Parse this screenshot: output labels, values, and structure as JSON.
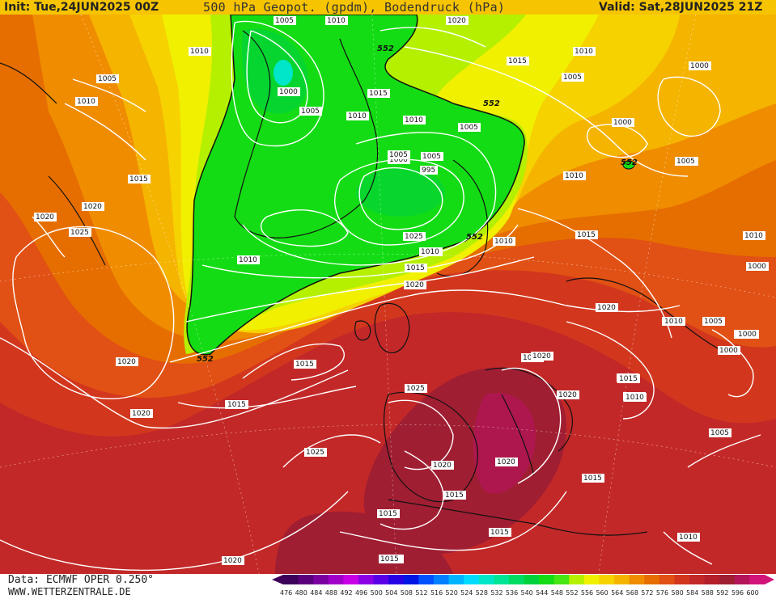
{
  "header": {
    "init": "Init: Tue,24JUN2025 00Z",
    "title": "500 hPa Geopot. (gpdm), Bodendruck (hPa)",
    "valid": "Valid: Sat,28JUN2025 21Z"
  },
  "footer": {
    "data_source": "Data: ECMWF OPER 0.250°",
    "website": "WWW.WETTERZENTRALE.DE"
  },
  "legend": {
    "values": [
      "476",
      "480",
      "484",
      "488",
      "492",
      "496",
      "500",
      "504",
      "508",
      "512",
      "516",
      "520",
      "524",
      "528",
      "532",
      "536",
      "540",
      "544",
      "548",
      "552",
      "556",
      "560",
      "564",
      "568",
      "572",
      "576",
      "580",
      "584",
      "588",
      "592",
      "596",
      "600"
    ],
    "colors": [
      "#3c005a",
      "#5a007c",
      "#7c00a0",
      "#a000c8",
      "#c800e6",
      "#8c00e6",
      "#5a00e6",
      "#2800e6",
      "#0014e6",
      "#0050ff",
      "#0080ff",
      "#00b4ff",
      "#00dcff",
      "#00e6c8",
      "#00e696",
      "#00dc64",
      "#00d23c",
      "#14dc14",
      "#46e614",
      "#b4f000",
      "#f0f000",
      "#f5d200",
      "#f5b400",
      "#f08c00",
      "#e66e00",
      "#e15014",
      "#d2371e",
      "#c32828",
      "#b41e28",
      "#a01e32",
      "#b4145a",
      "#d2147a"
    ]
  },
  "map": {
    "geopotential_labels": [
      "552",
      "552",
      "552",
      "552",
      "552"
    ],
    "pressure_labels": [
      "1005",
      "1010",
      "1020",
      "1010",
      "1005",
      "1010",
      "1000",
      "1005",
      "1010",
      "1015",
      "1010",
      "1005",
      "1015",
      "1010",
      "1005",
      "1000",
      "1005",
      "1000",
      "995",
      "1005",
      "1010",
      "1000",
      "1005",
      "1015",
      "1020",
      "1010",
      "1015",
      "1020",
      "1025",
      "1020",
      "1020",
      "1025",
      "1015",
      "1025",
      "1015",
      "1020",
      "1025",
      "1020",
      "1020",
      "1015",
      "1015",
      "1015",
      "1015",
      "1015",
      "1020",
      "1020",
      "1010",
      "1010",
      "1005",
      "1005",
      "1000",
      "1010",
      "1000",
      "1010",
      "1005",
      "1025",
      "1020",
      "1015",
      "1010",
      "1015",
      "1010",
      "1015",
      "1000",
      "1005",
      "1000",
      "1010",
      "1005",
      "1020",
      "1005",
      "1015",
      "1010",
      "1010",
      "1015",
      "1010",
      "1020"
    ]
  }
}
